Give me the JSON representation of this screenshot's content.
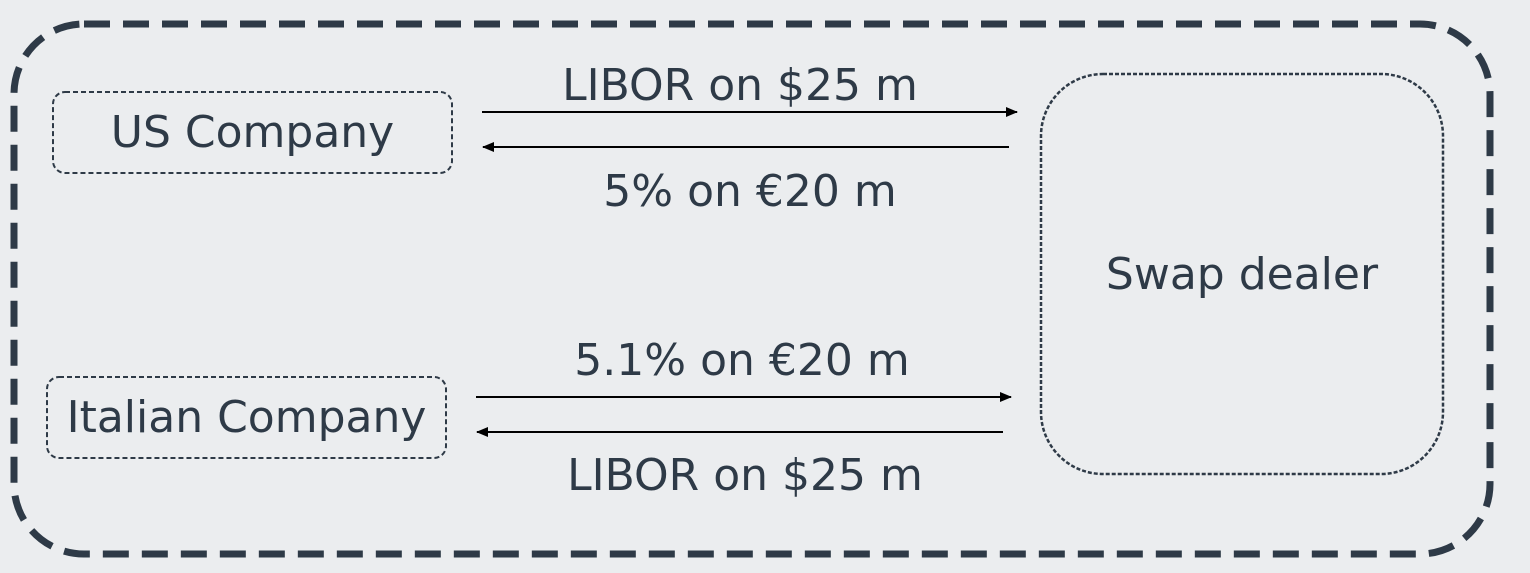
{
  "nodes": {
    "us_company": "US Company",
    "italian_company": "Italian Company",
    "swap_dealer": "Swap dealer"
  },
  "flows": {
    "us_to_dealer": "LIBOR on $25 m",
    "dealer_to_us": "5% on €20 m",
    "italian_to_dealer": "5.1% on €20 m",
    "dealer_to_italian": "LIBOR on $25 m"
  },
  "colors": {
    "background": "#ebedef",
    "outline": "#2e3a47",
    "arrow": "#000000"
  }
}
